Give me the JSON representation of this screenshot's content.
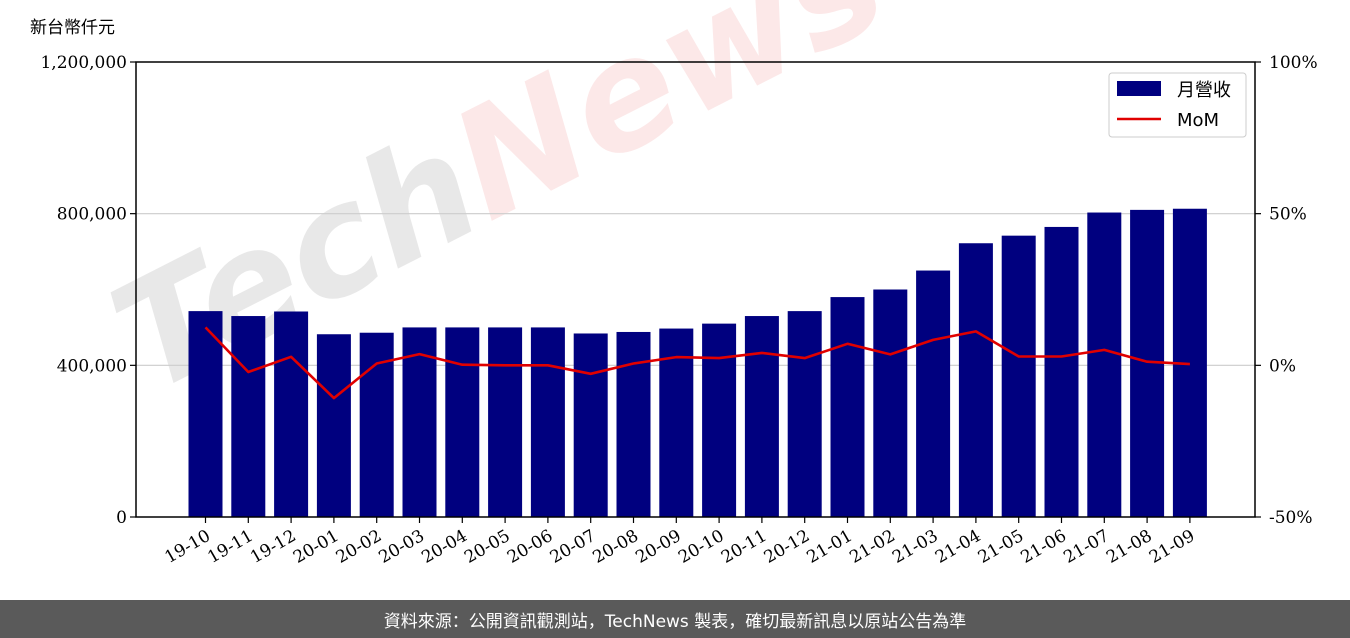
{
  "chart_data": {
    "type": "bar",
    "y_unit_label": "新台幣仟元",
    "categories": [
      "19-10",
      "19-11",
      "19-12",
      "20-01",
      "20-02",
      "20-03",
      "20-04",
      "20-05",
      "20-06",
      "20-07",
      "20-08",
      "20-09",
      "20-10",
      "20-11",
      "20-12",
      "21-01",
      "21-02",
      "21-03",
      "21-04",
      "21-05",
      "21-06",
      "21-07",
      "21-08",
      "21-09"
    ],
    "series": [
      {
        "name": "月營收",
        "kind": "bar",
        "axis": "left",
        "color": "#00007f",
        "values": [
          543000,
          530000,
          542000,
          482000,
          486000,
          500000,
          500000,
          500000,
          500000,
          484000,
          488000,
          497000,
          510000,
          530000,
          543000,
          580000,
          600000,
          650000,
          722000,
          742000,
          765000,
          803000,
          810000,
          813000
        ]
      },
      {
        "name": "MoM",
        "kind": "line",
        "axis": "right",
        "color": "#e00000",
        "values": [
          12.5,
          -2.2,
          2.8,
          -10.8,
          0.6,
          3.7,
          0.2,
          0.0,
          0.0,
          -2.8,
          0.6,
          2.7,
          2.4,
          4.1,
          2.4,
          7.1,
          3.6,
          8.4,
          11.2,
          2.9,
          2.9,
          5.1,
          1.2,
          0.4
        ]
      }
    ],
    "left_axis": {
      "ylim": [
        0,
        1200000
      ],
      "ticks": [
        0,
        400000,
        800000,
        1200000
      ],
      "tick_labels": [
        "0",
        "400,000",
        "800,000",
        "1,200,000"
      ]
    },
    "right_axis": {
      "ylim": [
        -50,
        100
      ],
      "ticks": [
        -50,
        0,
        50,
        100
      ],
      "tick_labels": [
        "-50%",
        "0%",
        "50%",
        "100%"
      ]
    },
    "grid": true,
    "legend_position": "top-right",
    "colors": {
      "bar": "#00007f",
      "line": "#e00000",
      "grid": "#cccccc"
    }
  },
  "watermark": {
    "text": "TechNews"
  },
  "footer": {
    "text": "資料來源：公開資訊觀測站，TechNews 製表，確切最新訊息以原站公告為準"
  }
}
